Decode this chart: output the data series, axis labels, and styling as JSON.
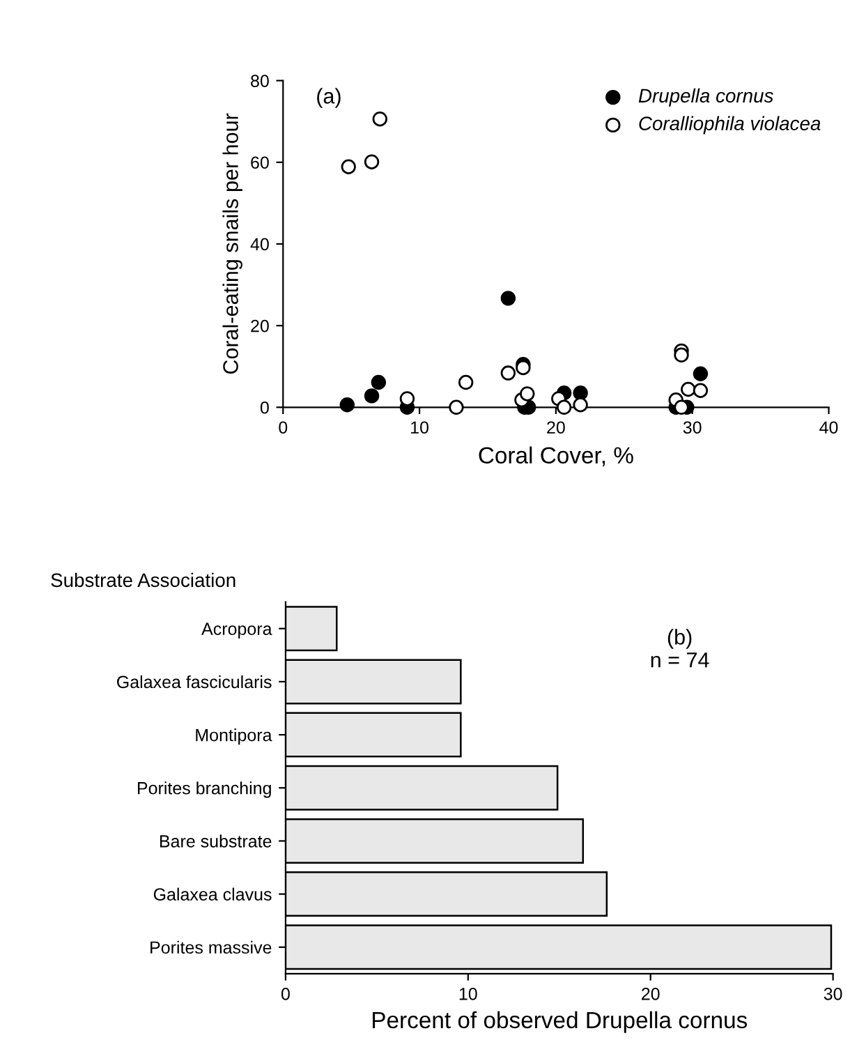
{
  "chart_data": [
    {
      "type": "scatter",
      "xlabel": "Coral Cover, %",
      "ylabel": "Coral-eating snails per hour",
      "annotations": [
        "(a)"
      ],
      "xlim": [
        0,
        40
      ],
      "xticks": [
        0,
        10,
        20,
        30,
        40
      ],
      "ylim": [
        0,
        80
      ],
      "yticks": [
        0,
        20,
        40,
        60,
        80
      ],
      "legend": "top right",
      "grid": false,
      "marker": "circle",
      "series": [
        {
          "name": "Drupella cornus",
          "color": "#000000",
          "x": [
            4.7,
            6.5,
            7.0,
            9.1,
            16.5,
            17.6,
            17.7,
            18.0,
            20.6,
            21.8,
            28.8,
            29.6,
            30.6
          ],
          "values": [
            0.6,
            2.8,
            6.1,
            0,
            26.7,
            10.5,
            0,
            0,
            3.5,
            3.5,
            0,
            0,
            8.2
          ]
        },
        {
          "name": "Coralliophila violacea",
          "color": "#ffffff",
          "x": [
            4.8,
            6.5,
            7.1,
            9.1,
            12.7,
            13.4,
            16.5,
            17.6,
            17.5,
            17.9,
            20.2,
            20.6,
            21.8,
            28.8,
            29.2,
            29.2,
            29.7,
            30.6,
            29.2
          ],
          "values": [
            58.9,
            60.1,
            70.6,
            2.1,
            0,
            6.1,
            8.4,
            9.7,
            1.8,
            3.3,
            2.1,
            0,
            0.6,
            1.8,
            13.8,
            12.8,
            4.4,
            4.1,
            0
          ]
        }
      ]
    },
    {
      "type": "bar",
      "orientation": "horizontal",
      "ylabel": "Substrate Association",
      "xlabel": "Percent of observed Drupella cornus",
      "annotations": [
        "(b)\nn = 74"
      ],
      "categories": [
        "Acropora",
        "Galaxea fascicularis",
        "Montipora",
        "Porites branching",
        "Bare substrate",
        "Galaxea clavus",
        "Porites massive"
      ],
      "values": [
        2.8,
        9.6,
        9.6,
        14.9,
        16.3,
        17.6,
        29.9
      ],
      "color": "#e8e8e8",
      "xlim": [
        0,
        30
      ],
      "xticks": [
        0,
        10,
        20,
        30
      ],
      "grid": false
    }
  ]
}
